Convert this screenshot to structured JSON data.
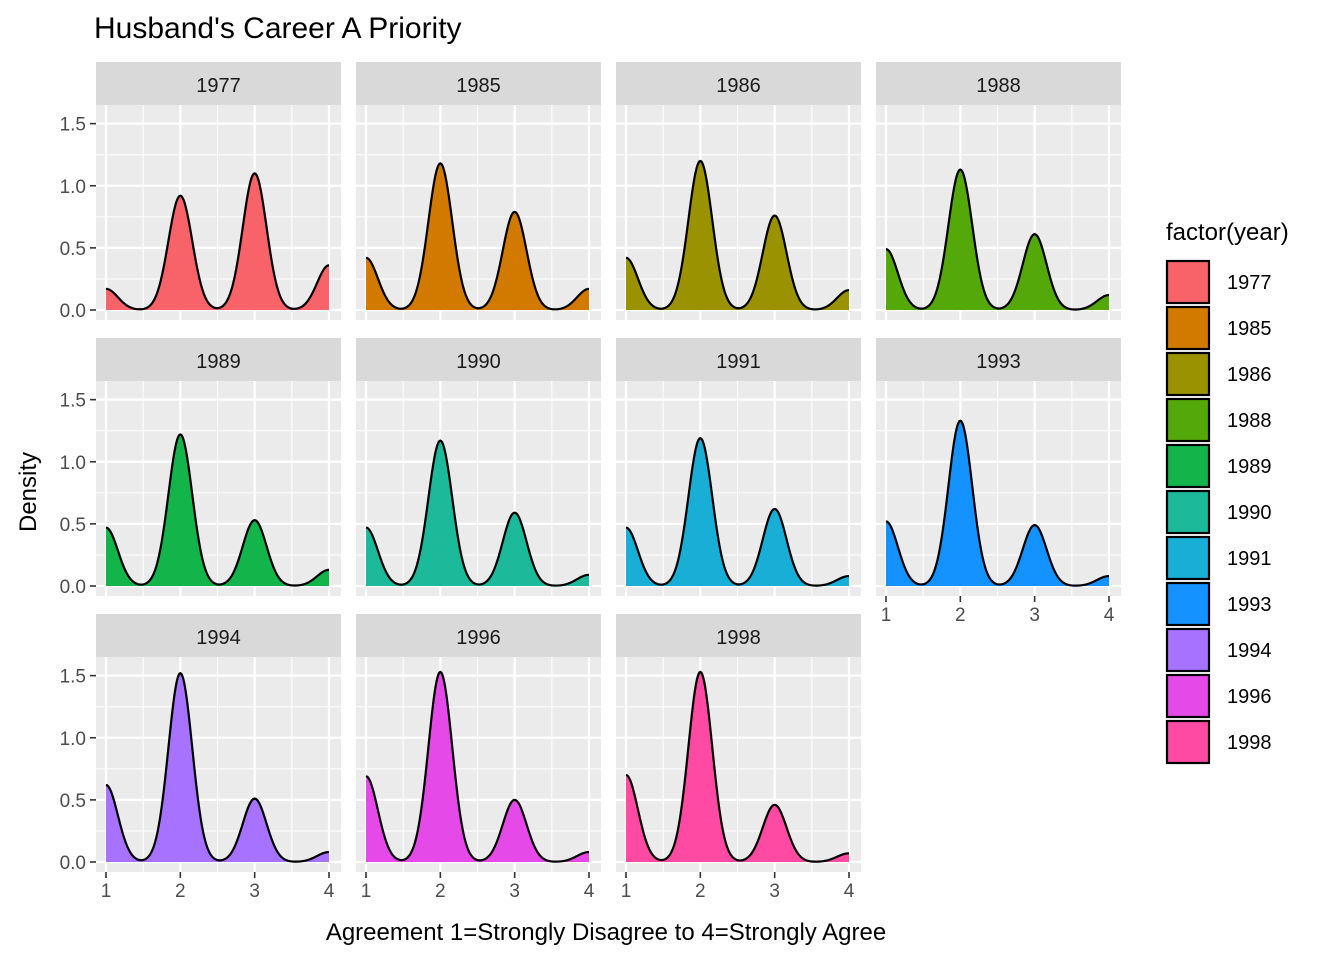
{
  "chart_data": {
    "type": "area",
    "chart_kind": "faceted density plot",
    "title": "Husband's Career A Priority",
    "xlabel": "Agreement 1=Strongly Disagree to 4=Strongly Agree",
    "ylabel": "Density",
    "xlim": [
      1,
      4
    ],
    "ylim": [
      0,
      1.5
    ],
    "x_ticks": [
      "1",
      "2",
      "3",
      "4"
    ],
    "y_ticks": [
      "0.0",
      "0.5",
      "1.0",
      "1.5"
    ],
    "grid": true,
    "legend": {
      "title": "factor(year)",
      "position": "right"
    },
    "facet_layout": {
      "columns": 4,
      "rows": 3
    },
    "curve_x": [
      1,
      2,
      3,
      4
    ],
    "series": [
      {
        "name": "1977",
        "color": "#F8766D",
        "values": [
          0.17,
          0.92,
          1.1,
          0.36
        ]
      },
      {
        "name": "1985",
        "color": "#D89000",
        "values": [
          0.42,
          1.18,
          0.79,
          0.17
        ]
      },
      {
        "name": "1986",
        "color": "#A3A500",
        "values": [
          0.42,
          1.2,
          0.76,
          0.16
        ]
      },
      {
        "name": "1988",
        "color": "#39B600",
        "values": [
          0.49,
          1.13,
          0.61,
          0.12
        ]
      },
      {
        "name": "1989",
        "color": "#00BF7D",
        "values": [
          0.47,
          1.22,
          0.53,
          0.13
        ]
      },
      {
        "name": "1990",
        "color": "#00BFC4",
        "values": [
          0.47,
          1.17,
          0.59,
          0.09
        ]
      },
      {
        "name": "1991",
        "color": "#00B0F6",
        "values": [
          0.47,
          1.19,
          0.62,
          0.08
        ]
      },
      {
        "name": "1993",
        "color": "#00A5FF",
        "values": [
          0.52,
          1.33,
          0.49,
          0.08
        ]
      },
      {
        "name": "1994",
        "color": "#9590FF",
        "values": [
          0.62,
          1.52,
          0.51,
          0.08
        ]
      },
      {
        "name": "1996",
        "color": "#E76BF3",
        "values": [
          0.69,
          1.53,
          0.5,
          0.08
        ]
      },
      {
        "name": "1998",
        "color": "#FF62BC",
        "values": [
          0.7,
          1.53,
          0.46,
          0.07
        ]
      }
    ],
    "series_colors_display": {
      "1977": "#F8636A",
      "1985": "#D27A00",
      "1986": "#9B9200",
      "1988": "#55A80A",
      "1989": "#13B44A",
      "1990": "#1CBA9A",
      "1991": "#18AED6",
      "1993": "#1492FF",
      "1994": "#A672FF",
      "1996": "#E54AE8",
      "1998": "#FE4AA3"
    },
    "axis_text_color": "#4D4D4D",
    "panel_bg": "#EBEBEB",
    "strip_bg": "#D9D9D9"
  }
}
